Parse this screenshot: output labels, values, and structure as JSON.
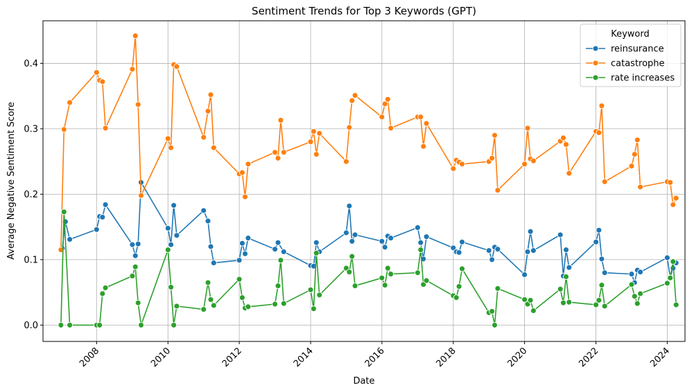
{
  "chart_data": {
    "type": "line",
    "title": "Sentiment Trends for Top 3 Keywords (GPT)",
    "xlabel": "Date",
    "ylabel": "Average Negative Sentiment Score",
    "xlim": [
      "2006-07-01",
      "2024-07-01"
    ],
    "ylim": [
      -0.025,
      0.465
    ],
    "x_ticks": [
      "2008",
      "2010",
      "2012",
      "2014",
      "2016",
      "2018",
      "2020",
      "2022",
      "2024"
    ],
    "y_ticks": [
      "0.0",
      "0.1",
      "0.2",
      "0.3",
      "0.4"
    ],
    "grid": true,
    "legend": {
      "title": "Keyword",
      "position": "top-right"
    },
    "series": [
      {
        "name": "reinsurance",
        "color": "#1f77b4",
        "points": [
          [
            "2007-01-15",
            0.117
          ],
          [
            "2007-02-15",
            0.158
          ],
          [
            "2007-04-01",
            0.131
          ],
          [
            "2008-01-01",
            0.146
          ],
          [
            "2008-02-01",
            0.166
          ],
          [
            "2008-03-01",
            0.165
          ],
          [
            "2008-04-01",
            0.184
          ],
          [
            "2009-01-01",
            0.123
          ],
          [
            "2009-02-01",
            0.106
          ],
          [
            "2009-03-01",
            0.124
          ],
          [
            "2009-04-01",
            0.218
          ],
          [
            "2010-01-01",
            0.148
          ],
          [
            "2010-02-01",
            0.123
          ],
          [
            "2010-03-01",
            0.183
          ],
          [
            "2010-04-01",
            0.137
          ],
          [
            "2011-01-01",
            0.175
          ],
          [
            "2011-02-15",
            0.159
          ],
          [
            "2011-03-15",
            0.12
          ],
          [
            "2011-04-15",
            0.095
          ],
          [
            "2012-01-01",
            0.099
          ],
          [
            "2012-02-01",
            0.125
          ],
          [
            "2012-03-01",
            0.109
          ],
          [
            "2012-04-01",
            0.133
          ],
          [
            "2013-01-01",
            0.116
          ],
          [
            "2013-02-01",
            0.126
          ],
          [
            "2013-04-01",
            0.112
          ],
          [
            "2014-01-01",
            0.091
          ],
          [
            "2014-02-01",
            0.09
          ],
          [
            "2014-03-01",
            0.126
          ],
          [
            "2014-04-01",
            0.112
          ],
          [
            "2015-01-01",
            0.141
          ],
          [
            "2015-02-01",
            0.182
          ],
          [
            "2015-03-01",
            0.128
          ],
          [
            "2015-04-01",
            0.138
          ],
          [
            "2016-01-01",
            0.128
          ],
          [
            "2016-02-01",
            0.119
          ],
          [
            "2016-03-01",
            0.136
          ],
          [
            "2016-04-01",
            0.133
          ],
          [
            "2017-01-01",
            0.149
          ],
          [
            "2017-02-01",
            0.126
          ],
          [
            "2017-03-01",
            0.101
          ],
          [
            "2017-04-01",
            0.135
          ],
          [
            "2018-01-01",
            0.118
          ],
          [
            "2018-02-01",
            0.112
          ],
          [
            "2018-03-01",
            0.111
          ],
          [
            "2018-04-01",
            0.127
          ],
          [
            "2019-01-01",
            0.114
          ],
          [
            "2019-02-01",
            0.1
          ],
          [
            "2019-03-01",
            0.119
          ],
          [
            "2019-04-01",
            0.116
          ],
          [
            "2020-01-01",
            0.077
          ],
          [
            "2020-02-01",
            0.112
          ],
          [
            "2020-03-01",
            0.143
          ],
          [
            "2020-04-01",
            0.114
          ],
          [
            "2021-01-01",
            0.138
          ],
          [
            "2021-02-01",
            0.075
          ],
          [
            "2021-03-01",
            0.115
          ],
          [
            "2021-04-01",
            0.088
          ],
          [
            "2022-01-01",
            0.127
          ],
          [
            "2022-02-01",
            0.145
          ],
          [
            "2022-03-01",
            0.101
          ],
          [
            "2022-04-01",
            0.08
          ],
          [
            "2023-01-01",
            0.078
          ],
          [
            "2023-02-01",
            0.065
          ],
          [
            "2023-03-01",
            0.084
          ],
          [
            "2023-04-01",
            0.081
          ],
          [
            "2024-01-01",
            0.103
          ],
          [
            "2024-02-01",
            0.073
          ],
          [
            "2024-03-01",
            0.087
          ],
          [
            "2024-04-01",
            0.095
          ]
        ]
      },
      {
        "name": "catastrophe",
        "color": "#ff7f0e",
        "points": [
          [
            "2007-01-01",
            0.115
          ],
          [
            "2007-02-01",
            0.299
          ],
          [
            "2007-04-01",
            0.34
          ],
          [
            "2008-01-01",
            0.386
          ],
          [
            "2008-02-01",
            0.374
          ],
          [
            "2008-03-01",
            0.372
          ],
          [
            "2008-04-01",
            0.301
          ],
          [
            "2009-01-01",
            0.391
          ],
          [
            "2009-02-01",
            0.442
          ],
          [
            "2009-03-01",
            0.337
          ],
          [
            "2009-04-01",
            0.198
          ],
          [
            "2010-01-01",
            0.285
          ],
          [
            "2010-02-01",
            0.271
          ],
          [
            "2010-03-01",
            0.398
          ],
          [
            "2010-04-01",
            0.395
          ],
          [
            "2011-01-01",
            0.287
          ],
          [
            "2011-02-15",
            0.327
          ],
          [
            "2011-03-15",
            0.352
          ],
          [
            "2011-04-15",
            0.271
          ],
          [
            "2012-01-01",
            0.231
          ],
          [
            "2012-02-01",
            0.233
          ],
          [
            "2012-03-01",
            0.196
          ],
          [
            "2012-04-01",
            0.246
          ],
          [
            "2013-01-01",
            0.264
          ],
          [
            "2013-02-01",
            0.255
          ],
          [
            "2013-03-01",
            0.313
          ],
          [
            "2013-04-01",
            0.264
          ],
          [
            "2014-01-01",
            0.28
          ],
          [
            "2014-02-01",
            0.296
          ],
          [
            "2014-03-01",
            0.261
          ],
          [
            "2014-04-01",
            0.293
          ],
          [
            "2015-01-01",
            0.25
          ],
          [
            "2015-02-01",
            0.302
          ],
          [
            "2015-03-01",
            0.343
          ],
          [
            "2015-04-01",
            0.351
          ],
          [
            "2016-01-01",
            0.318
          ],
          [
            "2016-02-01",
            0.338
          ],
          [
            "2016-03-01",
            0.345
          ],
          [
            "2016-04-01",
            0.301
          ],
          [
            "2017-01-01",
            0.318
          ],
          [
            "2017-02-01",
            0.318
          ],
          [
            "2017-03-01",
            0.273
          ],
          [
            "2017-04-01",
            0.308
          ],
          [
            "2018-01-01",
            0.239
          ],
          [
            "2018-02-01",
            0.252
          ],
          [
            "2018-03-01",
            0.249
          ],
          [
            "2018-04-01",
            0.246
          ],
          [
            "2019-01-01",
            0.25
          ],
          [
            "2019-02-01",
            0.255
          ],
          [
            "2019-03-01",
            0.29
          ],
          [
            "2019-04-01",
            0.206
          ],
          [
            "2020-01-01",
            0.246
          ],
          [
            "2020-02-01",
            0.301
          ],
          [
            "2020-03-01",
            0.254
          ],
          [
            "2020-04-01",
            0.251
          ],
          [
            "2021-01-01",
            0.281
          ],
          [
            "2021-02-01",
            0.286
          ],
          [
            "2021-03-01",
            0.276
          ],
          [
            "2021-04-01",
            0.232
          ],
          [
            "2022-01-01",
            0.296
          ],
          [
            "2022-02-01",
            0.294
          ],
          [
            "2022-03-01",
            0.335
          ],
          [
            "2022-04-01",
            0.219
          ],
          [
            "2023-01-01",
            0.243
          ],
          [
            "2023-02-01",
            0.261
          ],
          [
            "2023-03-01",
            0.283
          ],
          [
            "2023-04-01",
            0.211
          ],
          [
            "2024-01-01",
            0.219
          ],
          [
            "2024-02-01",
            0.218
          ],
          [
            "2024-03-01",
            0.184
          ],
          [
            "2024-04-01",
            0.194
          ]
        ]
      },
      {
        "name": "rate increases",
        "color": "#2ca02c",
        "points": [
          [
            "2007-01-01",
            0.0
          ],
          [
            "2007-02-01",
            0.173
          ],
          [
            "2007-04-01",
            0.0
          ],
          [
            "2008-01-01",
            0.0
          ],
          [
            "2008-02-01",
            0.0
          ],
          [
            "2008-03-01",
            0.048
          ],
          [
            "2008-04-01",
            0.057
          ],
          [
            "2009-01-01",
            0.075
          ],
          [
            "2009-02-01",
            0.089
          ],
          [
            "2009-03-01",
            0.034
          ],
          [
            "2009-04-01",
            0.0
          ],
          [
            "2010-01-01",
            0.115
          ],
          [
            "2010-02-01",
            0.058
          ],
          [
            "2010-03-01",
            0.0
          ],
          [
            "2010-04-01",
            0.029
          ],
          [
            "2011-01-01",
            0.024
          ],
          [
            "2011-02-15",
            0.065
          ],
          [
            "2011-03-15",
            0.039
          ],
          [
            "2011-04-15",
            0.03
          ],
          [
            "2012-01-01",
            0.07
          ],
          [
            "2012-02-01",
            0.042
          ],
          [
            "2012-03-01",
            0.026
          ],
          [
            "2012-04-01",
            0.028
          ],
          [
            "2013-01-01",
            0.032
          ],
          [
            "2013-02-01",
            0.06
          ],
          [
            "2013-03-01",
            0.099
          ],
          [
            "2013-04-01",
            0.033
          ],
          [
            "2014-01-01",
            0.054
          ],
          [
            "2014-02-01",
            0.025
          ],
          [
            "2014-03-01",
            0.11
          ],
          [
            "2014-04-01",
            0.046
          ],
          [
            "2015-01-01",
            0.087
          ],
          [
            "2015-02-01",
            0.081
          ],
          [
            "2015-03-01",
            0.105
          ],
          [
            "2015-04-01",
            0.06
          ],
          [
            "2016-01-01",
            0.072
          ],
          [
            "2016-02-01",
            0.061
          ],
          [
            "2016-03-01",
            0.087
          ],
          [
            "2016-04-01",
            0.078
          ],
          [
            "2017-01-01",
            0.08
          ],
          [
            "2017-02-01",
            0.115
          ],
          [
            "2017-03-01",
            0.062
          ],
          [
            "2017-04-01",
            0.068
          ],
          [
            "2018-01-01",
            0.045
          ],
          [
            "2018-02-01",
            0.042
          ],
          [
            "2018-03-01",
            0.059
          ],
          [
            "2018-04-01",
            0.086
          ],
          [
            "2019-01-01",
            0.019
          ],
          [
            "2019-02-01",
            0.021
          ],
          [
            "2019-03-01",
            0.0
          ],
          [
            "2019-04-01",
            0.056
          ],
          [
            "2020-01-01",
            0.039
          ],
          [
            "2020-02-01",
            0.032
          ],
          [
            "2020-03-01",
            0.038
          ],
          [
            "2020-04-01",
            0.022
          ],
          [
            "2021-01-01",
            0.055
          ],
          [
            "2021-02-01",
            0.034
          ],
          [
            "2021-03-01",
            0.074
          ],
          [
            "2021-04-01",
            0.035
          ],
          [
            "2022-01-01",
            0.031
          ],
          [
            "2022-02-01",
            0.038
          ],
          [
            "2022-03-01",
            0.061
          ],
          [
            "2022-04-01",
            0.029
          ],
          [
            "2023-01-01",
            0.062
          ],
          [
            "2023-02-01",
            0.044
          ],
          [
            "2023-03-01",
            0.033
          ],
          [
            "2023-04-01",
            0.048
          ],
          [
            "2024-01-01",
            0.064
          ],
          [
            "2024-02-01",
            0.072
          ],
          [
            "2024-03-01",
            0.097
          ],
          [
            "2024-04-01",
            0.031
          ]
        ]
      }
    ]
  }
}
